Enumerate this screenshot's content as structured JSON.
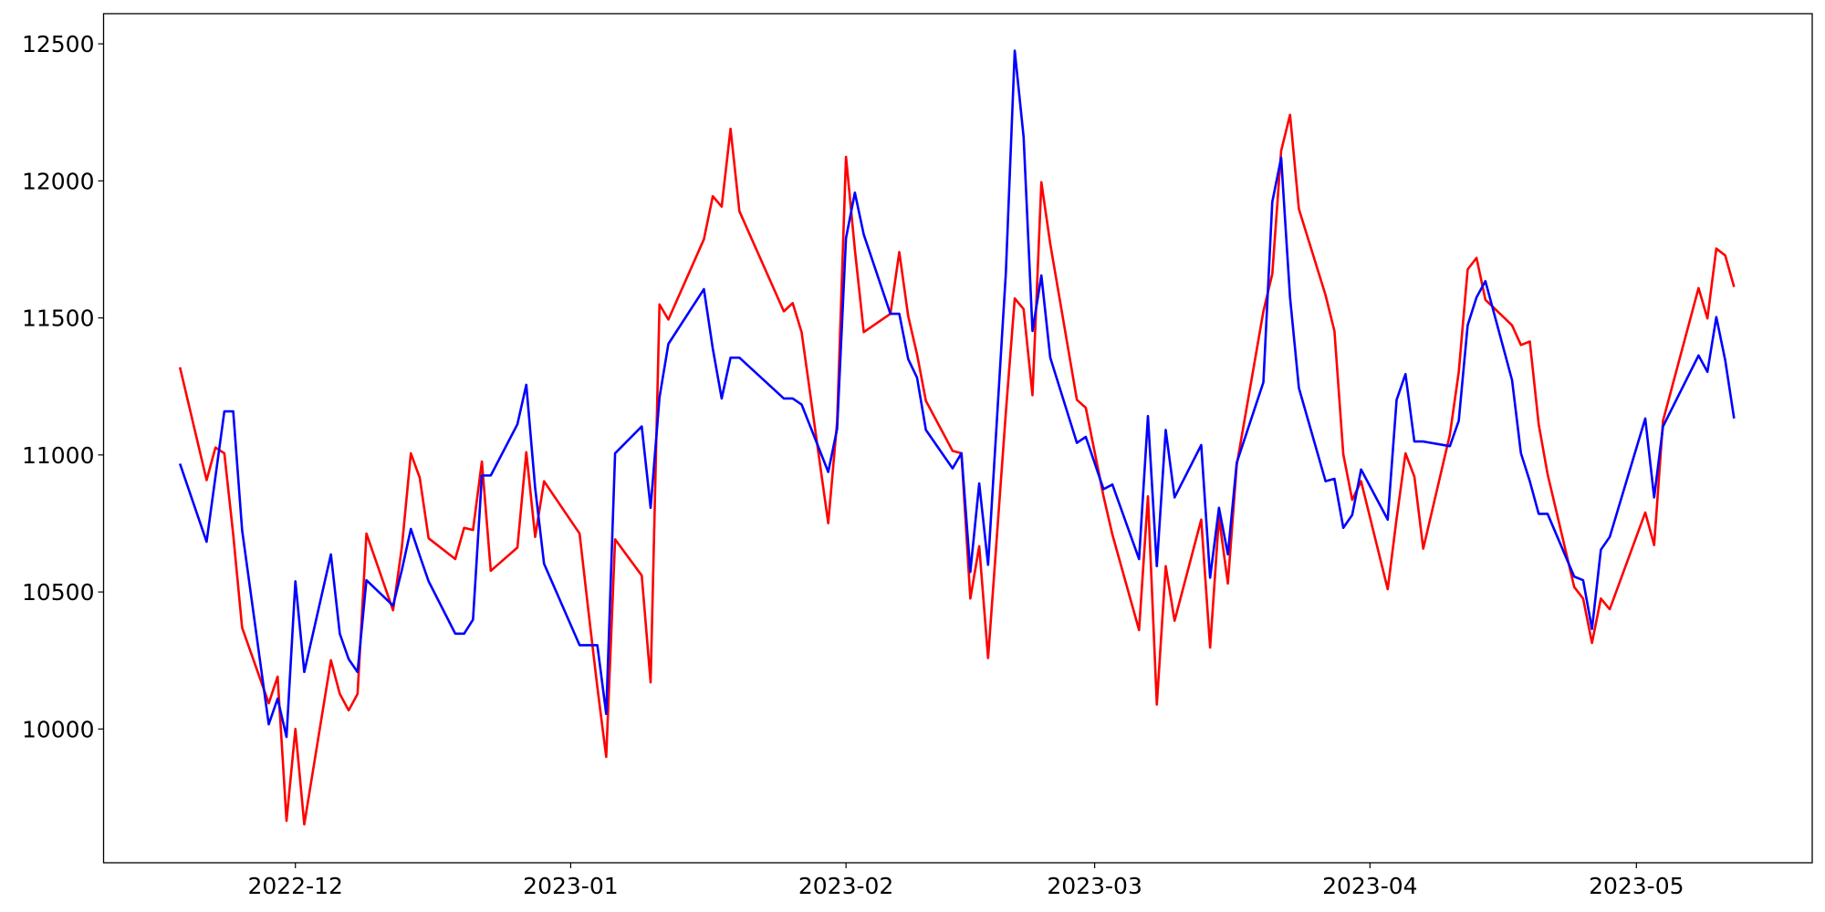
{
  "chart_data": {
    "type": "line",
    "x": [
      -13,
      -10,
      -9,
      -8,
      -7,
      -6,
      -3,
      -2,
      -1,
      0,
      1,
      4,
      5,
      6,
      7,
      8,
      11,
      12,
      13,
      14,
      15,
      18,
      19,
      20,
      21,
      22,
      25,
      26,
      27,
      28,
      32,
      33,
      34,
      35,
      36,
      39,
      40,
      41,
      42,
      46,
      47,
      48,
      49,
      50,
      55,
      56,
      57,
      60,
      61,
      62,
      63,
      64,
      67,
      68,
      69,
      70,
      71,
      74,
      75,
      76,
      77,
      78,
      80,
      81,
      82,
      83,
      84,
      85,
      88,
      89,
      91,
      92,
      95,
      96,
      97,
      98,
      99,
      102,
      103,
      104,
      105,
      106,
      109,
      110,
      111,
      112,
      113,
      116,
      117,
      118,
      119,
      120,
      123,
      124,
      125,
      126,
      127,
      130,
      131,
      132,
      133,
      134,
      137,
      138,
      139,
      140,
      141,
      144,
      145,
      146,
      147,
      148,
      152,
      153,
      154,
      158,
      159,
      160,
      161,
      162
    ],
    "series": [
      {
        "color": "#ff0000",
        "values": [
          11320,
          10908,
          11027,
          11006,
          10709,
          10370,
          10094,
          10191,
          9665,
          10000,
          9652,
          10251,
          10128,
          10068,
          10128,
          10713,
          10433,
          10667,
          11006,
          10917,
          10696,
          10620,
          10734,
          10726,
          10976,
          10577,
          10662,
          11010,
          10701,
          10904,
          10713,
          10429,
          10153,
          9898,
          10692,
          10560,
          10170,
          11549,
          11494,
          11787,
          11944,
          11906,
          12190,
          11889,
          11524,
          11554,
          11448,
          10751,
          11121,
          12088,
          11749,
          11448,
          11515,
          11740,
          11507,
          11367,
          11197,
          11015,
          11006,
          10476,
          10667,
          10259,
          11155,
          11571,
          11532,
          11218,
          11995,
          11770,
          11201,
          11172,
          10849,
          10709,
          10361,
          10849,
          10089,
          10594,
          10395,
          10764,
          10297,
          10773,
          10531,
          10964,
          11524,
          11660,
          12110,
          12241,
          11897,
          11583,
          11452,
          11002,
          10836,
          10904,
          10510,
          10768,
          11006,
          10921,
          10658,
          11074,
          11303,
          11677,
          11719,
          11566,
          11473,
          11401,
          11414,
          11112,
          10930,
          10518,
          10476,
          10314,
          10476,
          10437,
          10790,
          10671,
          11125,
          11609,
          11498,
          11753,
          11728,
          11613
        ]
      },
      {
        "color": "#0000ff",
        "values": [
          10968,
          10683,
          10921,
          11159,
          11159,
          10726,
          10017,
          10111,
          9971,
          10539,
          10208,
          10637,
          10348,
          10255,
          10208,
          10543,
          10450,
          10582,
          10730,
          10633,
          10539,
          10348,
          10348,
          10399,
          10925,
          10925,
          11112,
          11256,
          10879,
          10603,
          10306,
          10306,
          10306,
          10055,
          11006,
          11104,
          10807,
          11210,
          11405,
          11605,
          11388,
          11206,
          11355,
          11355,
          11206,
          11206,
          11184,
          10938,
          11095,
          11791,
          11957,
          11804,
          11515,
          11515,
          11350,
          11282,
          11091,
          10951,
          11006,
          10573,
          10896,
          10599,
          11664,
          12475,
          12160,
          11452,
          11655,
          11355,
          11044,
          11066,
          10875,
          10892,
          10620,
          11142,
          10594,
          11091,
          10845,
          11036,
          10552,
          10807,
          10637,
          10972,
          11265,
          11923,
          12084,
          11575,
          11244,
          10904,
          10913,
          10734,
          10781,
          10947,
          10764,
          11201,
          11295,
          11049,
          11049,
          11032,
          11125,
          11473,
          11575,
          11634,
          11273,
          11006,
          10904,
          10785,
          10785,
          10556,
          10543,
          10365,
          10654,
          10701,
          11133,
          10845,
          11104,
          11363,
          11303,
          11503,
          11346,
          11133
        ]
      }
    ],
    "xlim": [
      -21.6,
      170.8
    ],
    "xticks": [
      {
        "value": 0,
        "label": "2022-12"
      },
      {
        "value": 31,
        "label": "2023-01"
      },
      {
        "value": 62,
        "label": "2023-02"
      },
      {
        "value": 90,
        "label": "2023-03"
      },
      {
        "value": 121,
        "label": "2023-04"
      },
      {
        "value": 151,
        "label": "2023-05"
      }
    ],
    "ylim": [
      9512,
      12610
    ],
    "yticks": [
      10000,
      10500,
      11000,
      11500,
      12000,
      12500
    ],
    "grid": false
  }
}
